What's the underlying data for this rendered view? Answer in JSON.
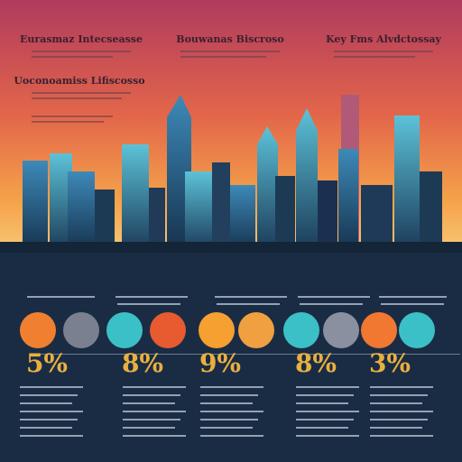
{
  "header": {
    "columns": [
      "Eurasmaz Intecseasse",
      "Bouwanas Biscroso",
      "Key Fms Alvdctossay"
    ],
    "subtitle": "Uoconoamiss Lifiscosso"
  },
  "stats": [
    "5%",
    "8%",
    "9%",
    "8%",
    "3%"
  ]
}
